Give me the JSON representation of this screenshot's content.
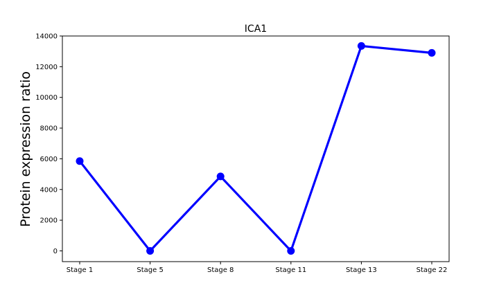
{
  "chart_data": {
    "type": "line",
    "title": "ICA1",
    "xlabel": "",
    "ylabel": "Protein expression ratio",
    "categories": [
      "Stage 1",
      "Stage 5",
      "Stage 8",
      "Stage 11",
      "Stage 13",
      "Stage 22"
    ],
    "series": [
      {
        "values": [
          5850,
          0,
          4850,
          0,
          13350,
          12900
        ],
        "color": "#0000ff"
      }
    ],
    "ylim": [
      -700,
      14000
    ],
    "yticks": [
      0,
      2000,
      4000,
      6000,
      8000,
      10000,
      12000,
      14000
    ],
    "grid": false,
    "legend": "none"
  }
}
